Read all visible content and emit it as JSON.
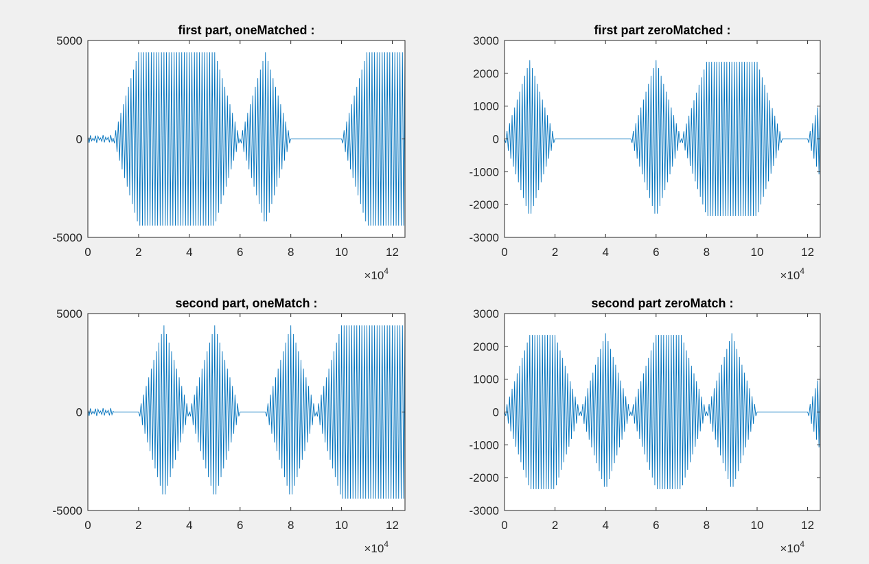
{
  "figure": {
    "background": "#f0f0f0",
    "line_color": "#0072bd"
  },
  "chart_data": [
    {
      "type": "line",
      "title": "first part, oneMatched :",
      "xlabel": "",
      "ylabel": "",
      "xlim": [
        0,
        12.5
      ],
      "ylim": [
        -5000,
        5000
      ],
      "x_exponent_label": "×10",
      "x_exponent": "4",
      "xticks": [
        0,
        2,
        4,
        6,
        8,
        10,
        12
      ],
      "xtick_labels": [
        "0",
        "2",
        "4",
        "6",
        "8",
        "10",
        "12"
      ],
      "yticks": [
        5000,
        0,
        -5000
      ],
      "ytick_labels": [
        "5000",
        "0",
        "-5000"
      ],
      "grid": false,
      "series": [
        {
          "color": "#0072bd",
          "segments": [
            {
              "x0": 0,
              "x1": 1,
              "shape": "noise",
              "peak": 200
            },
            {
              "x0": 1,
              "x1": 2,
              "shape": "ramp-up",
              "peak": 4400
            },
            {
              "x0": 2,
              "x1": 5,
              "shape": "flat",
              "peak": 4400
            },
            {
              "x0": 5,
              "x1": 6,
              "shape": "ramp-down",
              "peak": 4400
            },
            {
              "x0": 6,
              "x1": 8,
              "shape": "diamond",
              "peak": 4400
            },
            {
              "x0": 8,
              "x1": 10,
              "shape": "zero",
              "peak": 0
            },
            {
              "x0": 10,
              "x1": 11,
              "shape": "ramp-up",
              "peak": 4400
            },
            {
              "x0": 11,
              "x1": 12.5,
              "shape": "flat",
              "peak": 4400
            }
          ]
        }
      ]
    },
    {
      "type": "line",
      "title": "first part zeroMatched :",
      "xlabel": "",
      "ylabel": "",
      "xlim": [
        0,
        12.5
      ],
      "ylim": [
        -3000,
        3000
      ],
      "x_exponent_label": "×10",
      "x_exponent": "4",
      "xticks": [
        0,
        2,
        4,
        6,
        8,
        10,
        12
      ],
      "xtick_labels": [
        "0",
        "2",
        "4",
        "6",
        "8",
        "10",
        "12"
      ],
      "yticks": [
        3000,
        2000,
        1000,
        0,
        -1000,
        -2000,
        -3000
      ],
      "ytick_labels": [
        "3000",
        "2000",
        "1000",
        "0",
        "-1000",
        "-2000",
        "-3000"
      ],
      "grid": false,
      "series": [
        {
          "color": "#0072bd",
          "segments": [
            {
              "x0": 0,
              "x1": 2,
              "shape": "diamond",
              "peak": 2400
            },
            {
              "x0": 2,
              "x1": 5,
              "shape": "zero",
              "peak": 0
            },
            {
              "x0": 5,
              "x1": 7,
              "shape": "diamond",
              "peak": 2400
            },
            {
              "x0": 7,
              "x1": 8,
              "shape": "ramp-up",
              "peak": 2350
            },
            {
              "x0": 8,
              "x1": 10,
              "shape": "flat",
              "peak": 2350
            },
            {
              "x0": 10,
              "x1": 11,
              "shape": "ramp-down",
              "peak": 2350
            },
            {
              "x0": 11,
              "x1": 12,
              "shape": "zero",
              "peak": 0
            },
            {
              "x0": 12,
              "x1": 12.5,
              "shape": "ramp-up",
              "peak": 1200
            }
          ]
        }
      ]
    },
    {
      "type": "line",
      "title": "second part, oneMatch :",
      "xlabel": "",
      "ylabel": "",
      "xlim": [
        0,
        12.5
      ],
      "ylim": [
        -5000,
        5000
      ],
      "x_exponent_label": "×10",
      "x_exponent": "4",
      "xticks": [
        0,
        2,
        4,
        6,
        8,
        10,
        12
      ],
      "xtick_labels": [
        "0",
        "2",
        "4",
        "6",
        "8",
        "10",
        "12"
      ],
      "yticks": [
        5000,
        0,
        -5000
      ],
      "ytick_labels": [
        "5000",
        "0",
        "-5000"
      ],
      "grid": false,
      "series": [
        {
          "color": "#0072bd",
          "segments": [
            {
              "x0": 0,
              "x1": 1,
              "shape": "noise",
              "peak": 200
            },
            {
              "x0": 1,
              "x1": 2,
              "shape": "zero",
              "peak": 0
            },
            {
              "x0": 2,
              "x1": 4,
              "shape": "diamond",
              "peak": 4400
            },
            {
              "x0": 4,
              "x1": 6,
              "shape": "diamond",
              "peak": 4400
            },
            {
              "x0": 6,
              "x1": 7,
              "shape": "zero",
              "peak": 0
            },
            {
              "x0": 7,
              "x1": 9,
              "shape": "diamond",
              "peak": 4400
            },
            {
              "x0": 9,
              "x1": 10,
              "shape": "ramp-up",
              "peak": 4400
            },
            {
              "x0": 10,
              "x1": 12.5,
              "shape": "flat",
              "peak": 4400
            }
          ]
        }
      ]
    },
    {
      "type": "line",
      "title": "second part zeroMatch :",
      "xlabel": "",
      "ylabel": "",
      "xlim": [
        0,
        12.5
      ],
      "ylim": [
        -3000,
        3000
      ],
      "x_exponent_label": "×10",
      "x_exponent": "4",
      "xticks": [
        0,
        2,
        4,
        6,
        8,
        10,
        12
      ],
      "xtick_labels": [
        "0",
        "2",
        "4",
        "6",
        "8",
        "10",
        "12"
      ],
      "yticks": [
        3000,
        2000,
        1000,
        0,
        -1000,
        -2000,
        -3000
      ],
      "ytick_labels": [
        "3000",
        "2000",
        "1000",
        "0",
        "-1000",
        "-2000",
        "-3000"
      ],
      "grid": false,
      "series": [
        {
          "color": "#0072bd",
          "segments": [
            {
              "x0": 0,
              "x1": 1,
              "shape": "ramp-up",
              "peak": 2350
            },
            {
              "x0": 1,
              "x1": 2,
              "shape": "flat",
              "peak": 2350
            },
            {
              "x0": 2,
              "x1": 3,
              "shape": "ramp-down",
              "peak": 2350
            },
            {
              "x0": 3,
              "x1": 5,
              "shape": "diamond",
              "peak": 2400
            },
            {
              "x0": 5,
              "x1": 6,
              "shape": "ramp-up",
              "peak": 2350
            },
            {
              "x0": 6,
              "x1": 7,
              "shape": "flat",
              "peak": 2350
            },
            {
              "x0": 7,
              "x1": 8,
              "shape": "ramp-down",
              "peak": 2350
            },
            {
              "x0": 8,
              "x1": 10,
              "shape": "diamond",
              "peak": 2400
            },
            {
              "x0": 10,
              "x1": 12,
              "shape": "zero",
              "peak": 0
            },
            {
              "x0": 12,
              "x1": 12.5,
              "shape": "ramp-up",
              "peak": 1200
            }
          ]
        }
      ]
    }
  ]
}
